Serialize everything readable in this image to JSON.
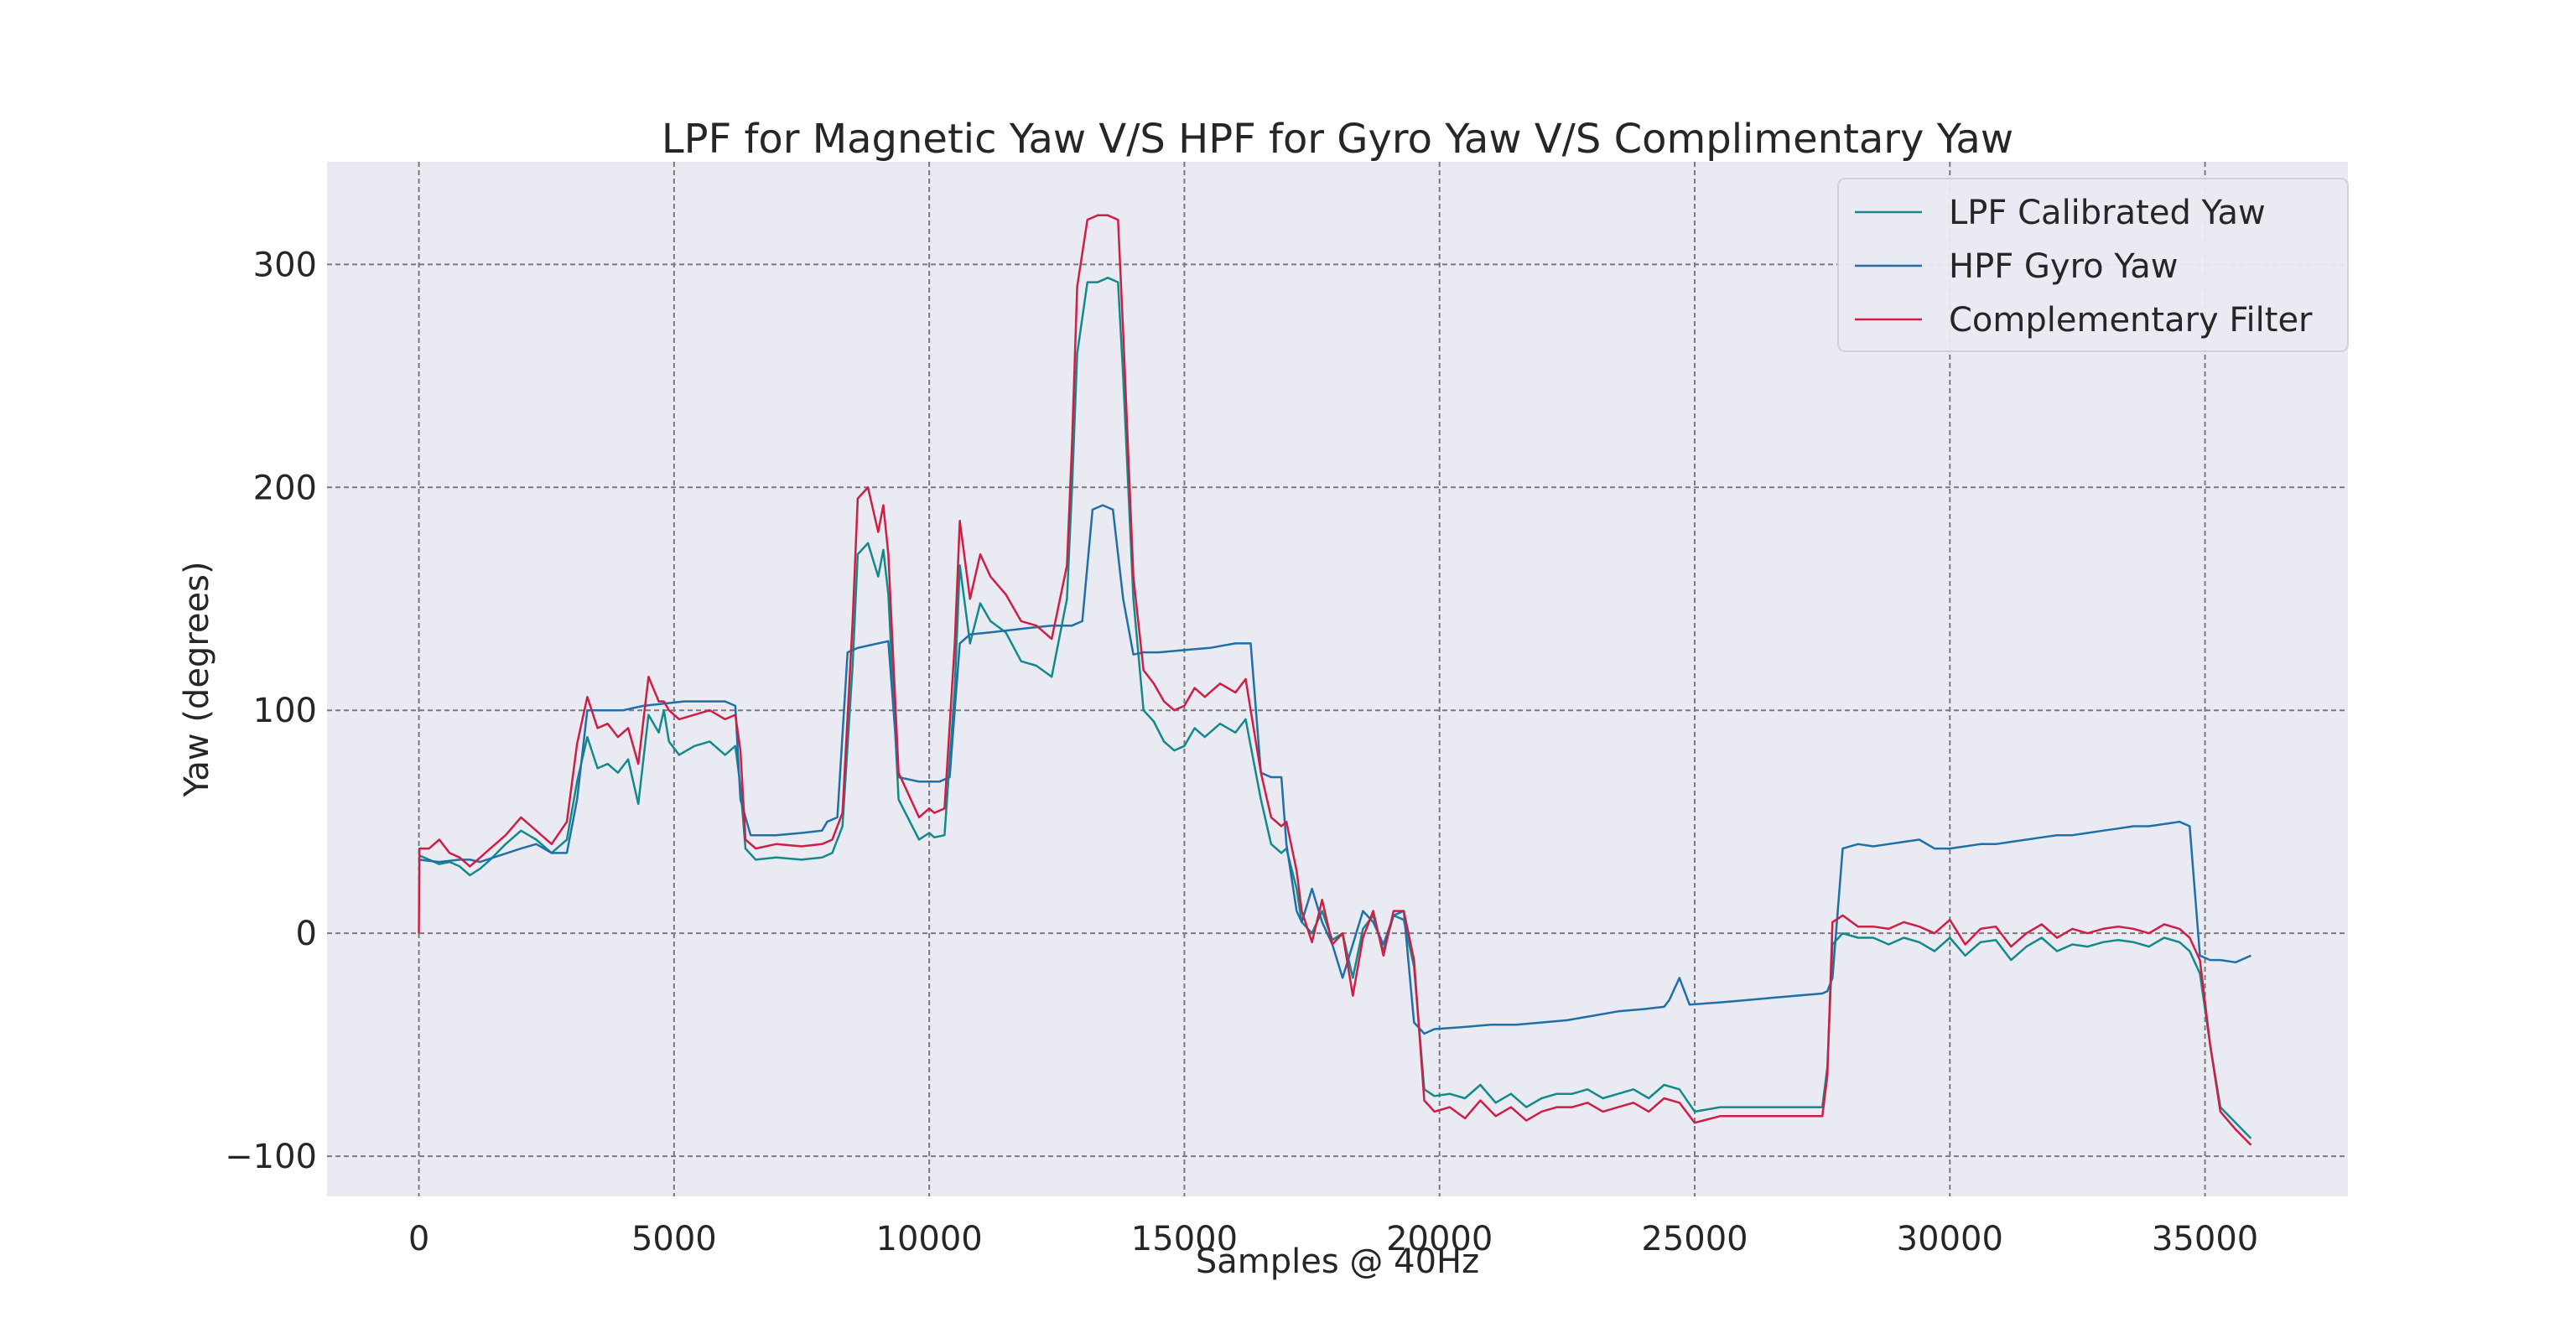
{
  "chart_data": {
    "type": "line",
    "title": "LPF for Magnetic Yaw V/S HPF for Gyro Yaw V/S  Complimentary Yaw",
    "xlabel": "Samples @ 40Hz",
    "ylabel": "Yaw (degrees)",
    "xlim": [
      -1800,
      37800
    ],
    "ylim": [
      -118,
      346
    ],
    "xticks": [
      0,
      5000,
      10000,
      15000,
      20000,
      25000,
      30000,
      35000
    ],
    "xtick_labels": [
      "0",
      "5000",
      "10000",
      "15000",
      "20000",
      "25000",
      "30000",
      "35000"
    ],
    "yticks": [
      -100,
      0,
      100,
      200,
      300
    ],
    "ytick_labels": [
      "−100",
      "0",
      "100",
      "200",
      "300"
    ],
    "grid": true,
    "legend_position": "top-right",
    "background_color": "#eaeaf2",
    "series": [
      {
        "name": "LPF Calibrated Yaw",
        "color": "#138a8a",
        "x": [
          0,
          200,
          400,
          600,
          800,
          1000,
          1200,
          1400,
          1700,
          2000,
          2300,
          2600,
          2900,
          3100,
          3300,
          3500,
          3700,
          3900,
          4100,
          4300,
          4500,
          4700,
          4800,
          4900,
          5100,
          5400,
          5700,
          6000,
          6200,
          6300,
          6400,
          6600,
          7000,
          7500,
          7900,
          8100,
          8300,
          8500,
          8600,
          8800,
          9000,
          9100,
          9200,
          9400,
          9800,
          10000,
          10100,
          10300,
          10500,
          10600,
          10800,
          11000,
          11200,
          11500,
          11800,
          12100,
          12400,
          12700,
          12800,
          12900,
          13100,
          13300,
          13500,
          13700,
          13800,
          14000,
          14200,
          14400,
          14600,
          14800,
          15000,
          15200,
          15400,
          15700,
          16000,
          16200,
          16300,
          16500,
          16700,
          16900,
          17000,
          17200,
          17300,
          17500,
          17700,
          17900,
          18100,
          18300,
          18500,
          18700,
          18900,
          19100,
          19300,
          19500,
          19700,
          19900,
          20200,
          20500,
          20800,
          21100,
          21400,
          21700,
          22000,
          22300,
          22600,
          22900,
          23200,
          23500,
          23800,
          24100,
          24400,
          24700,
          25000,
          25500,
          26000,
          26500,
          27000,
          27500,
          27600,
          27700,
          27900,
          28200,
          28500,
          28800,
          29100,
          29400,
          29700,
          30000,
          30300,
          30600,
          30900,
          31200,
          31500,
          31800,
          32100,
          32400,
          32700,
          33000,
          33300,
          33600,
          33900,
          34200,
          34500,
          34700,
          34900,
          35100,
          35300,
          35600,
          35900
        ],
        "values": [
          35,
          33,
          31,
          32,
          30,
          26,
          29,
          33,
          40,
          46,
          42,
          36,
          42,
          68,
          88,
          74,
          76,
          72,
          78,
          58,
          98,
          90,
          100,
          86,
          80,
          84,
          86,
          80,
          84,
          66,
          38,
          33,
          34,
          33,
          34,
          36,
          48,
          120,
          170,
          175,
          160,
          172,
          152,
          60,
          42,
          45,
          43,
          44,
          110,
          165,
          130,
          148,
          140,
          135,
          122,
          120,
          115,
          150,
          200,
          260,
          292,
          292,
          294,
          292,
          250,
          150,
          100,
          95,
          86,
          82,
          84,
          92,
          88,
          94,
          90,
          96,
          84,
          60,
          40,
          36,
          38,
          20,
          5,
          0,
          10,
          -3,
          0,
          -20,
          2,
          8,
          -8,
          8,
          6,
          -15,
          -70,
          -73,
          -72,
          -74,
          -68,
          -76,
          -72,
          -78,
          -74,
          -72,
          -72,
          -70,
          -74,
          -72,
          -70,
          -74,
          -68,
          -70,
          -80,
          -78,
          -78,
          -78,
          -78,
          -78,
          -60,
          -5,
          0,
          -2,
          -2,
          -5,
          -2,
          -4,
          -8,
          -2,
          -10,
          -4,
          -3,
          -12,
          -6,
          -2,
          -8,
          -5,
          -6,
          -4,
          -3,
          -4,
          -6,
          -2,
          -4,
          -8,
          -18,
          -50,
          -78,
          -85,
          -92
        ]
      },
      {
        "name": "HPF Gyro Yaw",
        "color": "#1f6fa8",
        "x": [
          0,
          400,
          800,
          1000,
          1200,
          1600,
          2000,
          2300,
          2600,
          2900,
          3100,
          3300,
          3600,
          4000,
          4400,
          4800,
          5200,
          5600,
          6000,
          6200,
          6300,
          6500,
          7000,
          7500,
          7900,
          8000,
          8200,
          8400,
          8600,
          9000,
          9200,
          9400,
          9800,
          10200,
          10400,
          10600,
          10800,
          11200,
          11600,
          12000,
          12400,
          12800,
          13000,
          13200,
          13400,
          13600,
          13800,
          14000,
          14200,
          14500,
          15000,
          15500,
          16000,
          16300,
          16500,
          16700,
          16900,
          17000,
          17200,
          17300,
          17500,
          17700,
          17900,
          18100,
          18300,
          18500,
          18700,
          18900,
          19100,
          19300,
          19500,
          19700,
          19900,
          20500,
          21000,
          21500,
          22000,
          22500,
          23000,
          23500,
          24000,
          24400,
          24500,
          24700,
          24900,
          25500,
          26000,
          26500,
          27000,
          27500,
          27600,
          27700,
          27900,
          28200,
          28500,
          28800,
          29100,
          29400,
          29700,
          30000,
          30300,
          30600,
          30900,
          31200,
          31500,
          31800,
          32100,
          32400,
          32700,
          33000,
          33300,
          33600,
          33900,
          34200,
          34500,
          34700,
          34900,
          35100,
          35300,
          35600,
          35900
        ],
        "values": [
          33,
          32,
          33,
          33,
          32,
          35,
          38,
          40,
          36,
          36,
          60,
          100,
          100,
          100,
          102,
          103,
          104,
          104,
          104,
          102,
          60,
          44,
          44,
          45,
          46,
          50,
          52,
          126,
          128,
          130,
          131,
          70,
          68,
          68,
          70,
          130,
          134,
          135,
          136,
          137,
          138,
          138,
          140,
          190,
          192,
          190,
          150,
          125,
          126,
          126,
          127,
          128,
          130,
          130,
          72,
          70,
          70,
          40,
          10,
          5,
          20,
          5,
          -5,
          -20,
          -5,
          10,
          5,
          -5,
          8,
          10,
          -40,
          -45,
          -43,
          -42,
          -41,
          -41,
          -40,
          -39,
          -37,
          -35,
          -34,
          -33,
          -30,
          -20,
          -32,
          -31,
          -30,
          -29,
          -28,
          -27,
          -26,
          -20,
          38,
          40,
          39,
          40,
          41,
          42,
          38,
          38,
          39,
          40,
          40,
          41,
          42,
          43,
          44,
          44,
          45,
          46,
          47,
          48,
          48,
          49,
          50,
          48,
          -10,
          -12,
          -12,
          -13,
          -10
        ]
      },
      {
        "name": "Complementary Filter",
        "color": "#cf1e45",
        "x": [
          0,
          10,
          200,
          400,
          600,
          800,
          1000,
          1200,
          1400,
          1700,
          2000,
          2300,
          2600,
          2900,
          3100,
          3300,
          3500,
          3700,
          3900,
          4100,
          4300,
          4500,
          4700,
          4800,
          4900,
          5100,
          5400,
          5700,
          6000,
          6200,
          6300,
          6400,
          6600,
          7000,
          7500,
          7900,
          8100,
          8300,
          8500,
          8600,
          8800,
          9000,
          9100,
          9200,
          9400,
          9800,
          10000,
          10100,
          10300,
          10500,
          10600,
          10800,
          11000,
          11200,
          11500,
          11800,
          12100,
          12400,
          12700,
          12800,
          12900,
          13100,
          13300,
          13500,
          13700,
          13800,
          14000,
          14200,
          14400,
          14600,
          14800,
          15000,
          15200,
          15400,
          15700,
          16000,
          16200,
          16300,
          16500,
          16700,
          16900,
          17000,
          17200,
          17300,
          17500,
          17700,
          17900,
          18100,
          18300,
          18500,
          18700,
          18900,
          19100,
          19300,
          19500,
          19700,
          19900,
          20200,
          20500,
          20800,
          21100,
          21400,
          21700,
          22000,
          22300,
          22600,
          22900,
          23200,
          23500,
          23800,
          24100,
          24400,
          24700,
          25000,
          25500,
          26000,
          26500,
          27000,
          27500,
          27600,
          27700,
          27900,
          28200,
          28500,
          28800,
          29100,
          29400,
          29700,
          30000,
          30300,
          30600,
          30900,
          31200,
          31500,
          31800,
          32100,
          32400,
          32700,
          33000,
          33300,
          33600,
          33900,
          34200,
          34500,
          34700,
          34900,
          35100,
          35300,
          35600,
          35900
        ],
        "values": [
          0,
          38,
          38,
          42,
          36,
          34,
          30,
          34,
          38,
          44,
          52,
          46,
          40,
          50,
          85,
          106,
          92,
          94,
          88,
          92,
          76,
          115,
          104,
          104,
          100,
          96,
          98,
          100,
          96,
          98,
          82,
          42,
          38,
          40,
          39,
          40,
          42,
          54,
          140,
          195,
          200,
          180,
          192,
          170,
          72,
          52,
          56,
          54,
          56,
          130,
          185,
          150,
          170,
          160,
          152,
          140,
          138,
          132,
          165,
          220,
          290,
          320,
          322,
          322,
          320,
          270,
          160,
          118,
          112,
          104,
          100,
          102,
          110,
          106,
          112,
          108,
          114,
          100,
          72,
          52,
          48,
          50,
          28,
          10,
          -4,
          15,
          -5,
          0,
          -28,
          -2,
          10,
          -10,
          10,
          10,
          -12,
          -75,
          -80,
          -78,
          -83,
          -75,
          -82,
          -78,
          -84,
          -80,
          -78,
          -78,
          -76,
          -80,
          -78,
          -76,
          -80,
          -74,
          -76,
          -85,
          -82,
          -82,
          -82,
          -82,
          -82,
          -64,
          5,
          8,
          3,
          3,
          2,
          5,
          3,
          0,
          6,
          -5,
          2,
          3,
          -6,
          0,
          4,
          -2,
          2,
          0,
          2,
          3,
          2,
          0,
          4,
          2,
          -2,
          -12,
          -50,
          -80,
          -88,
          -95
        ]
      }
    ]
  }
}
